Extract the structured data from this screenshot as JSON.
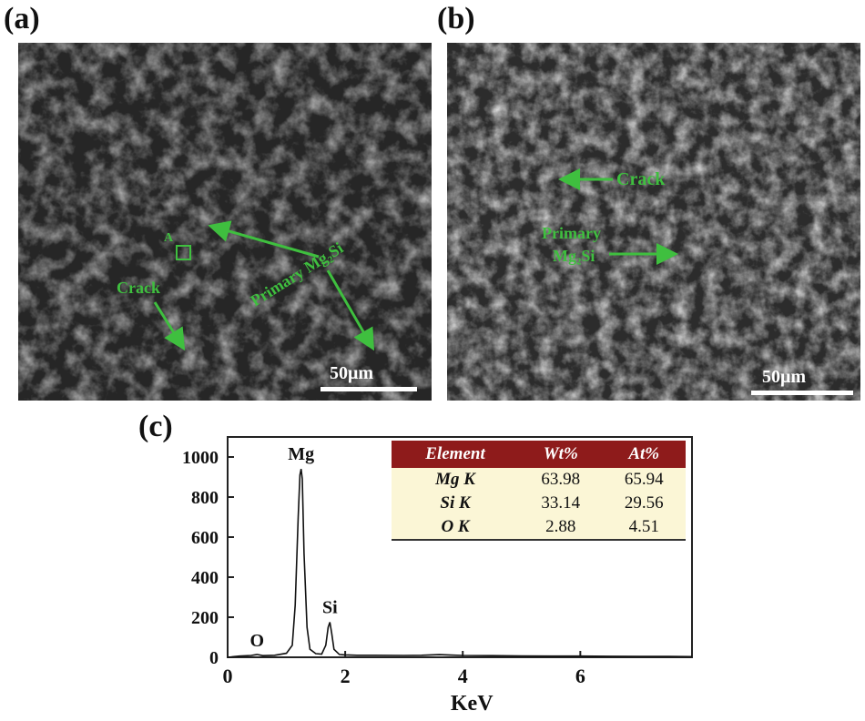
{
  "panels": {
    "a": {
      "label": "(a)",
      "annotations": {
        "point": "A",
        "crack": "Crack",
        "primary": "Primary Mg₂Si"
      },
      "scale_bar": "50μm"
    },
    "b": {
      "label": "(b)",
      "annotations": {
        "crack": "Crack",
        "primary_line1": "Primary",
        "primary_line2": "Mg₂Si"
      },
      "scale_bar": "50μm"
    },
    "c": {
      "label": "(c)"
    }
  },
  "colors": {
    "annotation_green": "#3fbf3f",
    "table_header": "#8e1b1b",
    "table_body": "#fbf6d6"
  },
  "table": {
    "headers": [
      "Element",
      "Wt%",
      "At%"
    ],
    "rows": [
      [
        "Mg K",
        "63.98",
        "65.94"
      ],
      [
        "Si K",
        "33.14",
        "29.56"
      ],
      [
        "O K",
        "2.88",
        "4.51"
      ]
    ]
  },
  "chart_data": {
    "type": "line",
    "title": "",
    "xlabel": "KeV",
    "ylabel": "",
    "xlim": [
      0,
      7.9
    ],
    "ylim": [
      0,
      1100
    ],
    "x_ticks": [
      0,
      2,
      4,
      6
    ],
    "y_ticks": [
      0,
      200,
      400,
      600,
      800,
      1000
    ],
    "peak_labels": [
      {
        "label": "O",
        "x": 0.5,
        "y": 10
      },
      {
        "label": "Mg",
        "x": 1.25,
        "y": 940
      },
      {
        "label": "Si",
        "x": 1.74,
        "y": 175
      }
    ],
    "series": [
      {
        "x": [
          0.0,
          0.2,
          0.4,
          0.5,
          0.6,
          0.8,
          1.0,
          1.1,
          1.15,
          1.2,
          1.23,
          1.25,
          1.27,
          1.3,
          1.35,
          1.4,
          1.5,
          1.6,
          1.67,
          1.71,
          1.74,
          1.77,
          1.81,
          1.9,
          2.0,
          2.2,
          2.5,
          3.0,
          3.3,
          3.6,
          3.8,
          4.0,
          4.5,
          5.0,
          5.5,
          6.0,
          6.5,
          7.0,
          7.5,
          7.9
        ],
        "values": [
          0,
          6,
          9,
          14,
          8,
          10,
          20,
          60,
          260,
          700,
          910,
          940,
          890,
          520,
          150,
          40,
          18,
          16,
          60,
          150,
          175,
          120,
          40,
          14,
          12,
          10,
          10,
          9,
          10,
          13,
          11,
          9,
          8,
          7,
          6,
          6,
          5,
          4,
          4,
          3
        ]
      }
    ]
  }
}
